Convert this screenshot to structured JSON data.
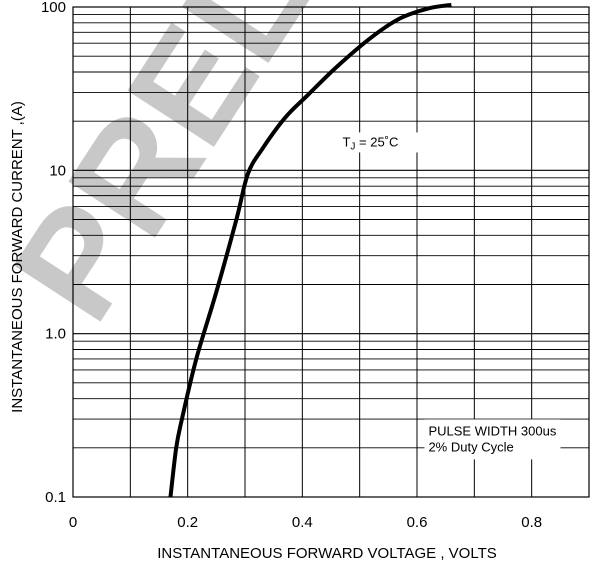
{
  "watermark": {
    "text": "PRELIMINARY",
    "color": "#c8c8c8"
  },
  "chart_data": {
    "type": "line",
    "title": "",
    "xlabel": "INSTANTANEOUS FORWARD VOLTAGE , VOLTS",
    "ylabel": "INSTANTANEOUS  FORWARD CURRENT ,(A)",
    "xlim": [
      0,
      0.9
    ],
    "ylim": [
      0.1,
      100
    ],
    "yscale": "log",
    "grid": true,
    "x_ticks": [
      0,
      0.1,
      0.2,
      0.3,
      0.4,
      0.5,
      0.6,
      0.7,
      0.8,
      0.9
    ],
    "x_tick_labels": [
      {
        "value": 0,
        "label": "0"
      },
      {
        "value": 0.2,
        "label": "0.2"
      },
      {
        "value": 0.4,
        "label": "0.4"
      },
      {
        "value": 0.6,
        "label": "0.6"
      },
      {
        "value": 0.8,
        "label": "0.8"
      }
    ],
    "y_tick_labels": [
      {
        "value": 0.1,
        "label": "0.1"
      },
      {
        "value": 1,
        "label": "1.0"
      },
      {
        "value": 10,
        "label": "10"
      },
      {
        "value": 100,
        "label": "100"
      }
    ],
    "series": [
      {
        "name": "",
        "color": "#000000",
        "x": [
          0.17,
          0.18,
          0.19,
          0.215,
          0.25,
          0.285,
          0.305,
          0.33,
          0.37,
          0.41,
          0.46,
          0.52,
          0.57,
          0.62,
          0.66
        ],
        "y": [
          0.1,
          0.2,
          0.3,
          0.7,
          1.8,
          5.0,
          9.5,
          13.5,
          21,
          29,
          43,
          65,
          85,
          98,
          103
        ]
      }
    ],
    "annotations": [
      {
        "id": "tj",
        "text_main": "T",
        "text_sub": "J",
        "text_rest": " = 25˚C",
        "x": 0.47,
        "y": 14
      },
      {
        "id": "pulse",
        "lines": [
          "PULSE WIDTH 300us",
          "2% Duty Cycle"
        ],
        "x": 0.62,
        "y": 0.17
      }
    ]
  }
}
